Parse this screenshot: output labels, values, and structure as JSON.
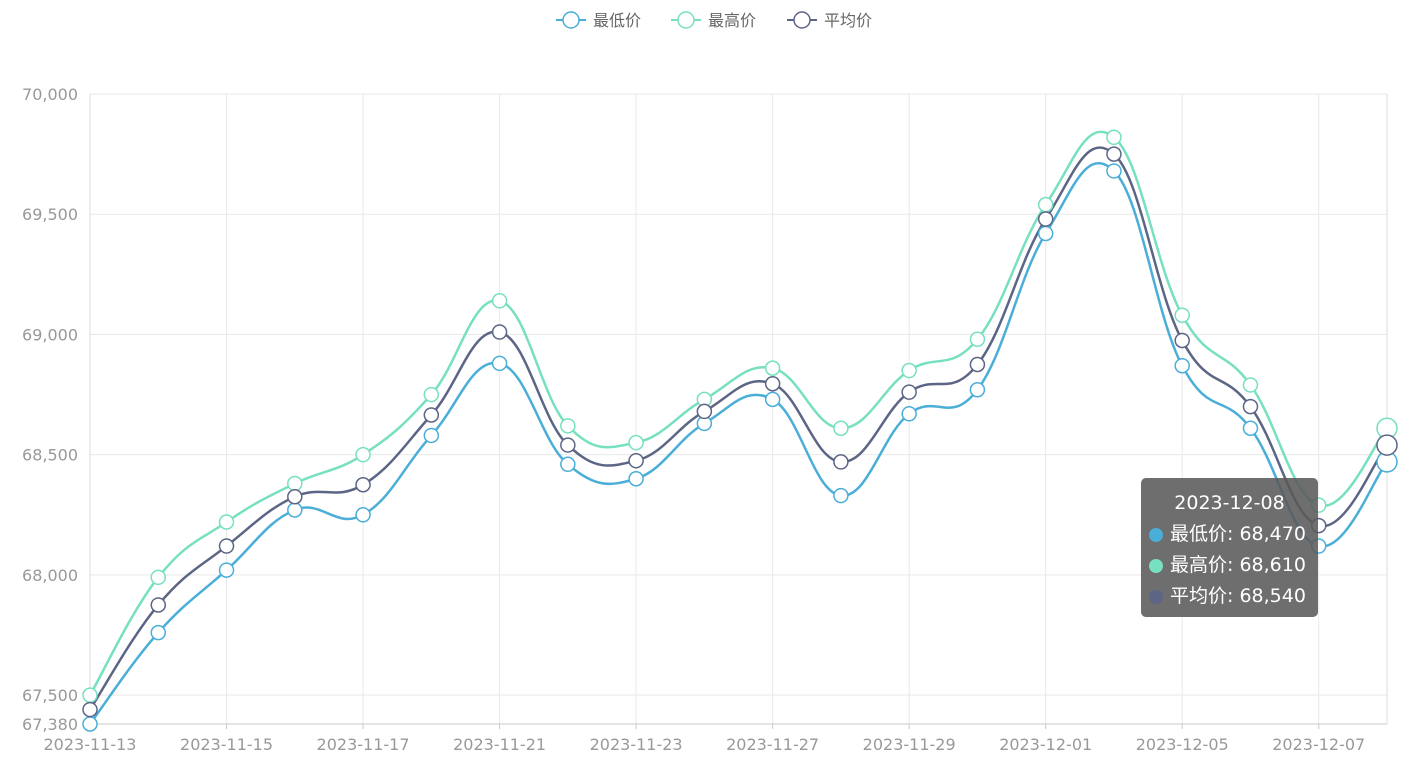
{
  "chart_data": {
    "type": "line",
    "x": [
      "2023-11-13",
      "2023-11-14",
      "2023-11-15",
      "2023-11-16",
      "2023-11-17",
      "2023-11-18",
      "2023-11-21",
      "2023-11-22",
      "2023-11-23",
      "2023-11-24",
      "2023-11-27",
      "2023-11-28",
      "2023-11-29",
      "2023-11-30",
      "2023-12-01",
      "2023-12-04",
      "2023-12-05",
      "2023-12-06",
      "2023-12-07",
      "2023-12-08"
    ],
    "x_tick_labels": [
      "2023-11-13",
      "2023-11-15",
      "2023-11-17",
      "2023-11-21",
      "2023-11-23",
      "2023-11-27",
      "2023-11-29",
      "2023-12-01",
      "2023-12-05",
      "2023-12-07"
    ],
    "series": [
      {
        "name": "最低价",
        "color": "#4aaed8",
        "values": [
          67380,
          67760,
          68020,
          68270,
          68250,
          68580,
          68880,
          68460,
          68400,
          68630,
          68730,
          68330,
          68670,
          68770,
          69420,
          69680,
          68870,
          68610,
          68120,
          68470
        ]
      },
      {
        "name": "最高价",
        "color": "#76e0c0",
        "values": [
          67500,
          67990,
          68220,
          68380,
          68500,
          68750,
          69140,
          68620,
          68550,
          68730,
          68860,
          68610,
          68850,
          68980,
          69540,
          69820,
          69080,
          68790,
          68290,
          68610
        ]
      },
      {
        "name": "平均价",
        "color": "#5c6585",
        "values": [
          67440,
          67875,
          68120,
          68325,
          68375,
          68665,
          69010,
          68540,
          68475,
          68680,
          68795,
          68470,
          68760,
          68875,
          69480,
          69750,
          68975,
          68700,
          68205,
          68540
        ]
      }
    ],
    "ylim": [
      67380,
      70000
    ],
    "y_ticks": [
      67380,
      67500,
      68000,
      68500,
      69000,
      69500,
      70000
    ],
    "grid": true,
    "legend_position": "top-center"
  },
  "tooltip": {
    "title": "2023-12-08",
    "rows": [
      {
        "label": "最低价: 68,470",
        "color": "#4aaed8"
      },
      {
        "label": "最高价: 68,610",
        "color": "#76e0c0"
      },
      {
        "label": "平均价: 68,540",
        "color": "#5c6585"
      }
    ]
  }
}
